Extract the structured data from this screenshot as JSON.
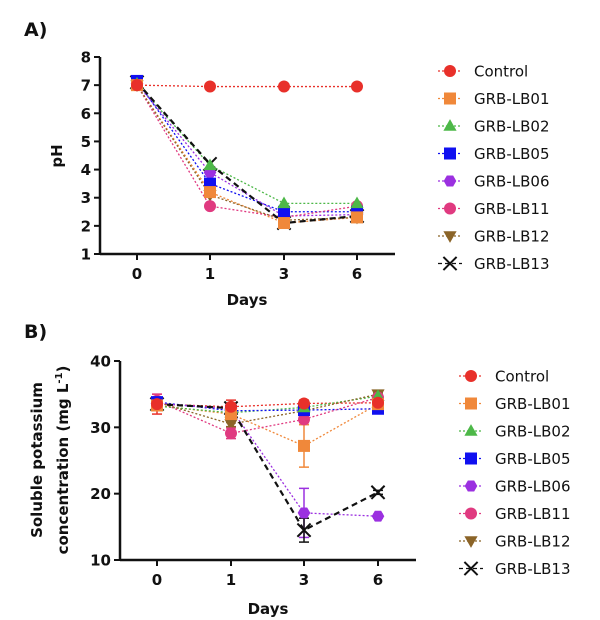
{
  "chart_data": [
    {
      "panel": "A)",
      "type": "line",
      "title": "",
      "xlabel": "Days",
      "ylabel": "pH",
      "x": [
        "0",
        "1",
        "3",
        "6"
      ],
      "yticks": [
        "1",
        "2",
        "3",
        "4",
        "5",
        "6",
        "7",
        "8"
      ],
      "ylim": [
        1,
        8
      ],
      "legend": "right",
      "grid": false,
      "series": [
        {
          "name": "Control",
          "color": "#e8302a",
          "marker": "circle",
          "dash": "dotted",
          "values": [
            7.0,
            6.95,
            6.95,
            6.95
          ]
        },
        {
          "name": "GRB-LB01",
          "color": "#f0883a",
          "marker": "square",
          "dash": "dotted",
          "values": [
            7.0,
            3.2,
            2.1,
            2.3
          ]
        },
        {
          "name": "GRB-LB02",
          "color": "#4db848",
          "marker": "triangle",
          "dash": "dotted",
          "values": [
            7.05,
            4.15,
            2.8,
            2.8
          ]
        },
        {
          "name": "GRB-LB05",
          "color": "#1010f0",
          "marker": "square",
          "dash": "dotted",
          "values": [
            7.15,
            3.5,
            2.5,
            2.5
          ]
        },
        {
          "name": "GRB-LB06",
          "color": "#9b30e0",
          "marker": "hexagon",
          "dash": "dotted",
          "values": [
            7.05,
            3.9,
            2.35,
            2.4
          ]
        },
        {
          "name": "GRB-LB11",
          "color": "#e03a80",
          "marker": "circle",
          "dash": "dotted",
          "values": [
            7.0,
            2.7,
            2.3,
            2.7
          ]
        },
        {
          "name": "GRB-LB12",
          "color": "#8b6428",
          "marker": "triangle-down",
          "dash": "dotted",
          "values": [
            7.0,
            3.1,
            2.2,
            2.3
          ]
        },
        {
          "name": "GRB-LB13",
          "color": "#111111",
          "marker": "x",
          "dash": "dashed",
          "values": [
            7.1,
            4.2,
            2.1,
            2.35
          ]
        }
      ]
    },
    {
      "panel": "B)",
      "type": "line",
      "title": "",
      "xlabel": "Days",
      "ylabel_line1": "Soluble potassium",
      "ylabel_line2": "concentration (mg L",
      "ylabel_sup": "-1",
      "ylabel_close": ")",
      "x": [
        "0",
        "1",
        "3",
        "6"
      ],
      "yticks": [
        "10",
        "20",
        "30",
        "40"
      ],
      "ylim": [
        10,
        40
      ],
      "legend": "right",
      "grid": false,
      "series": [
        {
          "name": "Control",
          "color": "#e8302a",
          "marker": "circle",
          "dash": "dotted",
          "values": [
            33.5,
            33.1,
            33.6,
            33.7
          ],
          "err": [
            1.5,
            1.0,
            0.5,
            0.5
          ]
        },
        {
          "name": "GRB-LB01",
          "color": "#f0883a",
          "marker": "square",
          "dash": "dotted",
          "values": [
            33.3,
            32.0,
            27.2,
            33.5
          ],
          "err": [
            0.8,
            0.6,
            3.2,
            0.5
          ]
        },
        {
          "name": "GRB-LB02",
          "color": "#4db848",
          "marker": "triangle",
          "dash": "dotted",
          "values": [
            33.2,
            32.2,
            33.0,
            34.7
          ],
          "err": [
            0.5,
            0.4,
            0.4,
            0.4
          ]
        },
        {
          "name": "GRB-LB05",
          "color": "#1010f0",
          "marker": "square",
          "dash": "dotted",
          "values": [
            33.8,
            32.5,
            32.6,
            32.8
          ],
          "err": [
            0.5,
            0.4,
            0.4,
            0.4
          ]
        },
        {
          "name": "GRB-LB06",
          "color": "#9b30e0",
          "marker": "hexagon",
          "dash": "dotted",
          "values": [
            33.6,
            32.8,
            17.1,
            16.6
          ],
          "err": [
            0.5,
            0.4,
            3.7,
            0.3
          ]
        },
        {
          "name": "GRB-LB11",
          "color": "#e03a80",
          "marker": "circle",
          "dash": "dotted",
          "values": [
            34.0,
            29.1,
            31.2,
            34.5
          ],
          "err": [
            1.0,
            0.8,
            0.5,
            0.4
          ]
        },
        {
          "name": "GRB-LB12",
          "color": "#8b6428",
          "marker": "triangle-down",
          "dash": "dotted",
          "values": [
            33.8,
            30.5,
            32.5,
            35.0
          ],
          "err": [
            0.5,
            0.4,
            0.4,
            0.3
          ]
        },
        {
          "name": "GRB-LB13",
          "color": "#111111",
          "marker": "x",
          "dash": "dashed",
          "values": [
            33.5,
            32.9,
            14.5,
            20.2
          ],
          "err": [
            0.6,
            0.5,
            1.8,
            0.3
          ]
        }
      ]
    }
  ]
}
